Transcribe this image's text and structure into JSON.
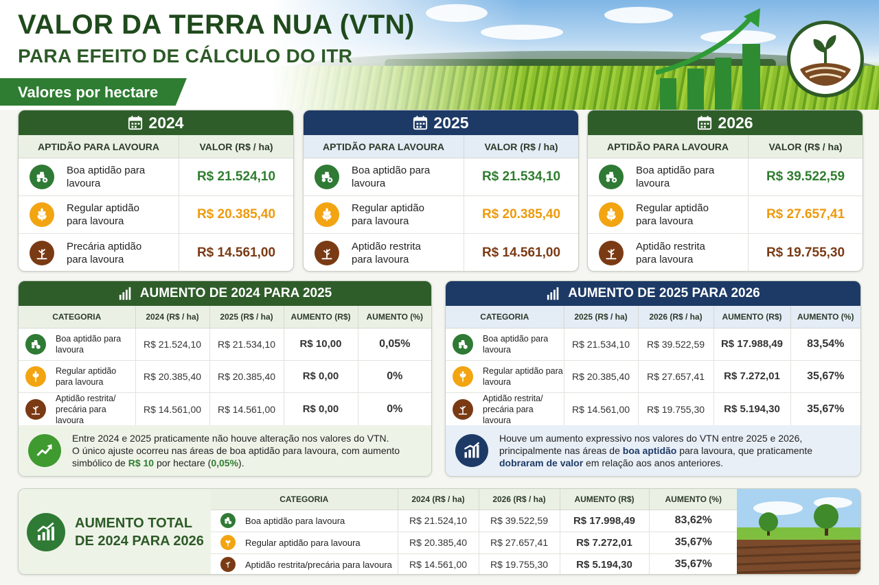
{
  "header": {
    "title": "VALOR DA TERRA NUA (VTN)",
    "subtitle": "PARA EFEITO DE CÁLCULO DO ITR",
    "ribbon": "Valores por hectare"
  },
  "year_cards": [
    {
      "year": "2024",
      "col_label": "APTIDÃO PARA LAVOURA",
      "col_value": "VALOR (R$ / ha)",
      "rows": [
        {
          "label": "Boa aptidão para lavoura",
          "value": "R$ 21.524,10",
          "icon": "tractor-icon"
        },
        {
          "label": "Regular aptidão para lavoura",
          "value": "R$ 20.385,40",
          "icon": "wheat-icon"
        },
        {
          "label": "Precária aptidão para lavoura",
          "value": "R$ 14.561,00",
          "icon": "sprout-icon"
        }
      ]
    },
    {
      "year": "2025",
      "col_label": "APTIDÃO PARA LAVOURA",
      "col_value": "VALOR (R$ / ha)",
      "rows": [
        {
          "label": "Boa aptidão para lavoura",
          "value": "R$ 21.534,10",
          "icon": "tractor-icon"
        },
        {
          "label": "Regular aptidão para lavoura",
          "value": "R$ 20.385,40",
          "icon": "wheat-icon"
        },
        {
          "label": "Aptidão restrita para lavoura",
          "value": "R$ 14.561,00",
          "icon": "sprout-icon"
        }
      ]
    },
    {
      "year": "2026",
      "col_label": "APTIDÃO PARA LAVOURA",
      "col_value": "VALOR (R$ / ha)",
      "rows": [
        {
          "label": "Boa aptidão para lavoura",
          "value": "R$ 39.522,59",
          "icon": "tractor-icon"
        },
        {
          "label": "Regular aptidão para lavoura",
          "value": "R$ 27.657,41",
          "icon": "wheat-icon"
        },
        {
          "label": "Aptidão restrita para lavoura",
          "value": "R$ 19.755,30",
          "icon": "sprout-icon"
        }
      ]
    }
  ],
  "increase_2024_2025": {
    "title": "AUMENTO DE 2024 PARA 2025",
    "headers": [
      "CATEGORIA",
      "2024 (R$ / ha)",
      "2025 (R$ / ha)",
      "AUMENTO (R$)",
      "AUMENTO (%)"
    ],
    "rows": [
      {
        "category": "Boa aptidão para lavoura",
        "a": "R$ 21.524,10",
        "b": "R$ 21.534,10",
        "inc": "R$ 10,00",
        "pct": "0,05%"
      },
      {
        "category": "Regular aptidão para lavoura",
        "a": "R$ 20.385,40",
        "b": "R$ 20.385,40",
        "inc": "R$ 0,00",
        "pct": "0%"
      },
      {
        "category": "Aptidão restrita/ precária para lavoura",
        "a": "R$ 14.561,00",
        "b": "R$ 14.561,00",
        "inc": "R$ 0,00",
        "pct": "0%"
      }
    ],
    "note_1": "Entre 2024 e 2025 praticamente não houve alteração nos valores do VTN.",
    "note_2": "O único ajuste ocorreu nas áreas de boa aptidão para lavoura, com aumento",
    "note_3a": "simbólico de ",
    "note_3b": "R$ 10",
    "note_3c": " por hectare (",
    "note_3d": "0,05%",
    "note_3e": ")."
  },
  "increase_2025_2026": {
    "title": "AUMENTO DE 2025 PARA 2026",
    "headers": [
      "CATEGORIA",
      "2025 (R$ / ha)",
      "2026 (R$ / ha)",
      "AUMENTO (R$)",
      "AUMENTO (%)"
    ],
    "rows": [
      {
        "category": "Boa aptidão para lavoura",
        "a": "R$ 21.534,10",
        "b": "R$ 39.522,59",
        "inc": "R$ 17.988,49",
        "pct": "83,54%"
      },
      {
        "category": "Regular aptidão para lavoura",
        "a": "R$ 20.385,40",
        "b": "R$ 27.657,41",
        "inc": "R$ 7.272,01",
        "pct": "35,67%"
      },
      {
        "category": "Aptidão restrita/ precária para lavoura",
        "a": "R$ 14.561,00",
        "b": "R$ 19.755,30",
        "inc": "R$ 5.194,30",
        "pct": "35,67%"
      }
    ],
    "note_1": "Houve um aumento expressivo nos valores do VTN entre 2025 e 2026,",
    "note_2a": "principalmente nas áreas de ",
    "note_2b": "boa aptidão",
    "note_2c": " para lavoura, que praticamente",
    "note_3a": "dobraram de valor",
    "note_3b": " em relação aos anos anteriores."
  },
  "total": {
    "title_1": "AUMENTO TOTAL",
    "title_2": "DE 2024 PARA 2026",
    "headers": [
      "CATEGORIA",
      "2024 (R$ / ha)",
      "2026 (R$ / ha)",
      "AUMENTO (R$)",
      "AUMENTO (%)"
    ],
    "rows": [
      {
        "category": "Boa aptidão para lavoura",
        "a": "R$ 21.524,10",
        "b": "R$ 39.522,59",
        "inc": "R$ 17.998,49",
        "pct": "83,62%"
      },
      {
        "category": "Regular aptidão para lavoura",
        "a": "R$ 20.385,40",
        "b": "R$ 27.657,41",
        "inc": "R$ 7.272,01",
        "pct": "35,67%"
      },
      {
        "category": "Aptidão restrita/precária para lavoura",
        "a": "R$ 14.561,00",
        "b": "R$ 19.755,30",
        "inc": "R$ 5.194,30",
        "pct": "35,67%"
      }
    ]
  },
  "colors": {
    "dark_green": "#2f5d2a",
    "navy": "#1d3a66",
    "green_value": "#2f7d2f",
    "orange_value": "#ee9a0c",
    "brown_value": "#7a3a14"
  }
}
